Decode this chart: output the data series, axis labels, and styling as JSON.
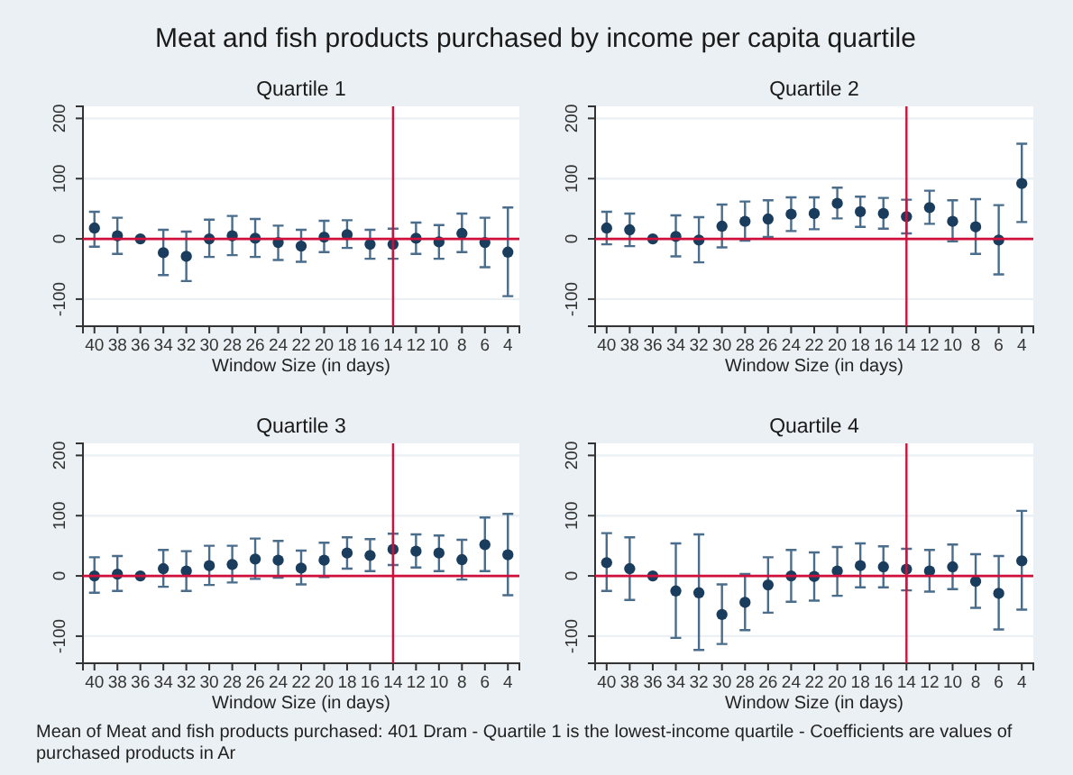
{
  "chart_data": [
    {
      "type": "other",
      "title": "Meat and fish products purchased by income per capita quartile",
      "annotations": [
        "Mean of Meat and fish products purchased: 401 Dram - Quartile 1 is the lowest-income quartile - Coefficients are values of purchased products in Ar"
      ]
    },
    {
      "type": "scatter",
      "title": "Quartile 1",
      "xlabel": "Window Size (in days)",
      "categories": [
        "40",
        "38",
        "36",
        "34",
        "32",
        "30",
        "28",
        "26",
        "24",
        "22",
        "20",
        "18",
        "16",
        "14",
        "12",
        "10",
        "8",
        "6",
        "4"
      ],
      "ylim": [
        -145,
        220
      ],
      "yticks": [
        -100,
        0,
        100,
        200
      ],
      "grid": "y",
      "marker": "circle",
      "ref_lines": [
        {
          "axis": "x",
          "value": "14",
          "color": "#d0103a"
        },
        {
          "axis": "y",
          "value": 0,
          "color": "#d0103a"
        }
      ],
      "series": [
        {
          "color": "#1a3d5e",
          "values": [
            18,
            5,
            0,
            -23,
            -29,
            0,
            5,
            1,
            -6,
            -12,
            3,
            7,
            -9,
            -9,
            1,
            -5,
            9,
            -6,
            -22
          ],
          "errors": [
            [
              -13,
              45
            ],
            [
              -25,
              35
            ],
            null,
            [
              -60,
              15
            ],
            [
              -70,
              12
            ],
            [
              -30,
              32
            ],
            [
              -27,
              38
            ],
            [
              -30,
              33
            ],
            [
              -35,
              22
            ],
            [
              -38,
              15
            ],
            [
              -22,
              30
            ],
            [
              -15,
              31
            ],
            [
              -33,
              15
            ],
            [
              -33,
              17
            ],
            [
              -25,
              27
            ],
            [
              -33,
              23
            ],
            [
              -22,
              42
            ],
            [
              -47,
              35
            ],
            [
              -95,
              52
            ]
          ]
        }
      ]
    },
    {
      "type": "scatter",
      "title": "Quartile 2",
      "xlabel": "Window Size (in days)",
      "categories": [
        "40",
        "38",
        "36",
        "34",
        "32",
        "30",
        "28",
        "26",
        "24",
        "22",
        "20",
        "18",
        "16",
        "14",
        "12",
        "10",
        "8",
        "6",
        "4"
      ],
      "ylim": [
        -145,
        220
      ],
      "yticks": [
        -100,
        0,
        100,
        200
      ],
      "grid": "y",
      "marker": "circle",
      "ref_lines": [
        {
          "axis": "x",
          "value": "14",
          "color": "#d0103a"
        },
        {
          "axis": "y",
          "value": 0,
          "color": "#d0103a"
        }
      ],
      "series": [
        {
          "color": "#1a3d5e",
          "values": [
            18,
            15,
            0,
            4,
            -2,
            21,
            29,
            33,
            41,
            42,
            59,
            45,
            42,
            37,
            52,
            29,
            20,
            -2,
            92
          ],
          "errors": [
            [
              -9,
              45
            ],
            [
              -12,
              42
            ],
            null,
            [
              -29,
              39
            ],
            [
              -39,
              36
            ],
            [
              -14,
              57
            ],
            [
              -3,
              62
            ],
            [
              3,
              64
            ],
            [
              13,
              69
            ],
            [
              16,
              69
            ],
            [
              34,
              85
            ],
            [
              20,
              70
            ],
            [
              17,
              68
            ],
            [
              9,
              65
            ],
            [
              25,
              80
            ],
            [
              -4,
              64
            ],
            [
              -25,
              66
            ],
            [
              -59,
              56
            ],
            [
              28,
              158
            ]
          ]
        }
      ]
    },
    {
      "type": "scatter",
      "title": "Quartile 3",
      "xlabel": "Window Size (in days)",
      "categories": [
        "40",
        "38",
        "36",
        "34",
        "32",
        "30",
        "28",
        "26",
        "24",
        "22",
        "20",
        "18",
        "16",
        "14",
        "12",
        "10",
        "8",
        "6",
        "4"
      ],
      "ylim": [
        -145,
        220
      ],
      "yticks": [
        -100,
        0,
        100,
        200
      ],
      "grid": "y",
      "marker": "circle",
      "ref_lines": [
        {
          "axis": "x",
          "value": "14",
          "color": "#d0103a"
        },
        {
          "axis": "y",
          "value": 0,
          "color": "#d0103a"
        }
      ],
      "series": [
        {
          "color": "#1a3d5e",
          "values": [
            0,
            3,
            0,
            12,
            8,
            17,
            19,
            28,
            26,
            13,
            26,
            38,
            34,
            44,
            41,
            38,
            27,
            52,
            35
          ],
          "errors": [
            [
              -28,
              31
            ],
            [
              -25,
              33
            ],
            null,
            [
              -18,
              43
            ],
            [
              -25,
              41
            ],
            [
              -15,
              50
            ],
            [
              -11,
              50
            ],
            [
              -5,
              62
            ],
            [
              -3,
              58
            ],
            [
              -14,
              42
            ],
            [
              -2,
              55
            ],
            [
              12,
              64
            ],
            [
              8,
              61
            ],
            [
              18,
              70
            ],
            [
              14,
              69
            ],
            [
              8,
              67
            ],
            [
              -6,
              60
            ],
            [
              8,
              97
            ],
            [
              -32,
              103
            ]
          ]
        }
      ]
    },
    {
      "type": "scatter",
      "title": "Quartile 4",
      "xlabel": "Window Size (in days)",
      "categories": [
        "40",
        "38",
        "36",
        "34",
        "32",
        "30",
        "28",
        "26",
        "24",
        "22",
        "20",
        "18",
        "16",
        "14",
        "12",
        "10",
        "8",
        "6",
        "4"
      ],
      "ylim": [
        -145,
        220
      ],
      "yticks": [
        -100,
        0,
        100,
        200
      ],
      "grid": "y",
      "marker": "circle",
      "ref_lines": [
        {
          "axis": "x",
          "value": "14",
          "color": "#d0103a"
        },
        {
          "axis": "y",
          "value": 0,
          "color": "#d0103a"
        }
      ],
      "series": [
        {
          "color": "#1a3d5e",
          "values": [
            22,
            12,
            0,
            -25,
            -28,
            -64,
            -44,
            -15,
            0,
            -1,
            8,
            17,
            15,
            11,
            8,
            15,
            -9,
            -29,
            25
          ],
          "errors": [
            [
              -25,
              71
            ],
            [
              -40,
              64
            ],
            null,
            [
              -103,
              54
            ],
            [
              -123,
              69
            ],
            [
              -113,
              -14
            ],
            [
              -90,
              3
            ],
            [
              -61,
              31
            ],
            [
              -43,
              43
            ],
            [
              -41,
              39
            ],
            [
              -33,
              48
            ],
            [
              -19,
              54
            ],
            [
              -19,
              49
            ],
            [
              -24,
              45
            ],
            [
              -26,
              43
            ],
            [
              -22,
              52
            ],
            [
              -53,
              36
            ],
            [
              -89,
              33
            ],
            [
              -56,
              108
            ]
          ]
        }
      ]
    }
  ]
}
